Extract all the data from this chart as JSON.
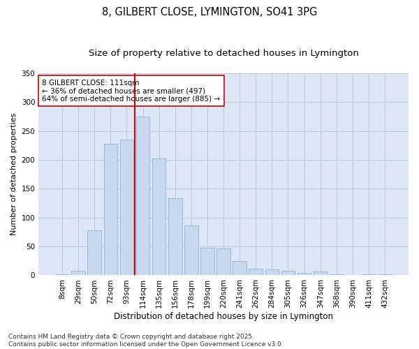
{
  "title1": "8, GILBERT CLOSE, LYMINGTON, SO41 3PG",
  "title2": "Size of property relative to detached houses in Lymington",
  "xlabel": "Distribution of detached houses by size in Lymington",
  "ylabel": "Number of detached properties",
  "categories": [
    "8sqm",
    "29sqm",
    "50sqm",
    "72sqm",
    "93sqm",
    "114sqm",
    "135sqm",
    "156sqm",
    "178sqm",
    "199sqm",
    "220sqm",
    "241sqm",
    "262sqm",
    "284sqm",
    "305sqm",
    "326sqm",
    "347sqm",
    "368sqm",
    "390sqm",
    "411sqm",
    "432sqm"
  ],
  "values": [
    2,
    8,
    78,
    228,
    235,
    275,
    203,
    133,
    87,
    48,
    47,
    25,
    11,
    10,
    8,
    4,
    6,
    2,
    0,
    2,
    2
  ],
  "bar_color": "#c8d9ef",
  "bar_edge_color": "#8cb4d8",
  "vline_index": 5,
  "annotation_title": "8 GILBERT CLOSE: 111sqm",
  "annotation_line1": "← 36% of detached houses are smaller (497)",
  "annotation_line2": "64% of semi-detached houses are larger (885) →",
  "vline_color": "#cc0000",
  "annotation_box_color": "#ffffff",
  "annotation_box_edge": "#cc0000",
  "grid_color": "#b8c8e0",
  "background_color": "#dce6f5",
  "ylim": [
    0,
    350
  ],
  "yticks": [
    0,
    50,
    100,
    150,
    200,
    250,
    300,
    350
  ],
  "footer1": "Contains HM Land Registry data © Crown copyright and database right 2025.",
  "footer2": "Contains public sector information licensed under the Open Government Licence v3.0.",
  "title1_fontsize": 10.5,
  "title2_fontsize": 9.5,
  "xlabel_fontsize": 8.5,
  "ylabel_fontsize": 8,
  "tick_fontsize": 7.5,
  "annotation_fontsize": 7.5,
  "footer_fontsize": 6.5
}
